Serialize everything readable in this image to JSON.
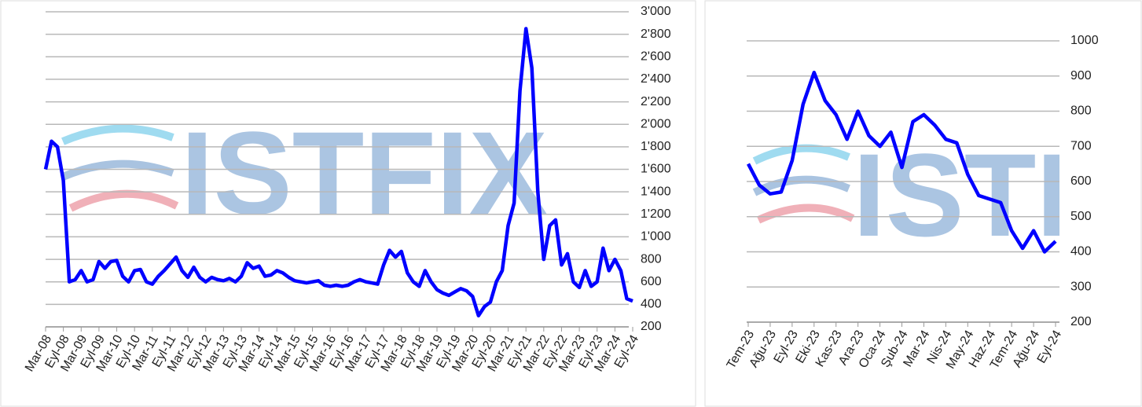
{
  "chart_data": [
    {
      "type": "line",
      "watermark": "ISTFIX",
      "categories": [
        "Mar-08",
        null,
        null,
        "Eyl-08",
        null,
        null,
        "Mar-09",
        null,
        null,
        "Eyl-09",
        null,
        null,
        "Mar-10",
        null,
        null,
        "Eyl-10",
        null,
        null,
        "Mar-11",
        null,
        null,
        "Eyl-11",
        null,
        null,
        "Mar-12",
        null,
        null,
        "Eyl-12",
        null,
        null,
        "Mar-13",
        null,
        null,
        "Eyl-13",
        null,
        null,
        "Mar-14",
        null,
        null,
        "Eyl-14",
        null,
        null,
        "Mar-15",
        null,
        null,
        "Eyl-15",
        null,
        null,
        "Mar-16",
        null,
        null,
        "Eyl-16",
        null,
        null,
        "Mar-17",
        null,
        null,
        "Eyl-17",
        null,
        null,
        "Mar-18",
        null,
        null,
        "Eyl-18",
        null,
        null,
        "Mar-19",
        null,
        null,
        "Eyl-19",
        null,
        null,
        "Mar-20",
        null,
        null,
        "Eyl-20",
        null,
        null,
        "Mar-21",
        null,
        null,
        "Eyl-21",
        null,
        null,
        "Mar-22",
        null,
        null,
        "Eyl-22",
        null,
        null,
        "Mar-23",
        null,
        null,
        "Eyl-23",
        null,
        null,
        "Mar-24",
        null,
        null,
        "Eyl-24"
      ],
      "series": [
        {
          "color": "#0000ff",
          "values": [
            1600,
            1850,
            1800,
            1500,
            600,
            620,
            700,
            600,
            620,
            780,
            720,
            780,
            790,
            650,
            600,
            700,
            710,
            600,
            580,
            650,
            700,
            760,
            820,
            700,
            640,
            730,
            640,
            600,
            640,
            620,
            610,
            630,
            600,
            650,
            770,
            720,
            740,
            650,
            660,
            700,
            680,
            640,
            610,
            600,
            590,
            600,
            610,
            570,
            560,
            570,
            560,
            570,
            600,
            620,
            600,
            590,
            580,
            750,
            880,
            820,
            870,
            680,
            600,
            560,
            700,
            600,
            530,
            500,
            480,
            510,
            540,
            520,
            470,
            300,
            380,
            420,
            600,
            700,
            1100,
            1300,
            2300,
            2850,
            2500,
            1400,
            800,
            1100,
            1150,
            750,
            850,
            600,
            550,
            700,
            560,
            600,
            900,
            700,
            800,
            700,
            450,
            430
          ]
        }
      ],
      "ylim": [
        200,
        3000
      ],
      "yticks": [
        200,
        400,
        600,
        800,
        {
          "value": 1000,
          "label": "1'000"
        },
        {
          "value": 1200,
          "label": "1'200"
        },
        {
          "value": 1400,
          "label": "1'400"
        },
        {
          "value": 1600,
          "label": "1'600"
        },
        {
          "value": 1800,
          "label": "1'800"
        },
        {
          "value": 2000,
          "label": "2'000"
        },
        {
          "value": 2200,
          "label": "2'200"
        },
        {
          "value": 2400,
          "label": "2'400"
        },
        {
          "value": 2600,
          "label": "2'600"
        },
        {
          "value": 2800,
          "label": "2'800"
        },
        {
          "value": 3000,
          "label": "3'000"
        }
      ],
      "grid": true
    },
    {
      "type": "line",
      "watermark": "ISTFIX",
      "categories": [
        "Tem-23",
        null,
        "Ağu-23",
        null,
        "Eyl-23",
        null,
        "Eki-23",
        null,
        "Kas-23",
        null,
        "Ara-23",
        null,
        "Oca-24",
        null,
        "Şub-24",
        null,
        "Mar-24",
        null,
        "Nis-24",
        null,
        "May-24",
        null,
        "Haz-24",
        null,
        "Tem-24",
        null,
        "Ağu-24",
        null,
        "Eyl-24"
      ],
      "series": [
        {
          "color": "#0000ff",
          "values": [
            650,
            590,
            565,
            570,
            660,
            820,
            910,
            830,
            790,
            720,
            800,
            730,
            700,
            740,
            640,
            770,
            790,
            760,
            720,
            710,
            620,
            560,
            550,
            540,
            460,
            410,
            460,
            400,
            430
          ]
        }
      ],
      "ylim": [
        200,
        1000
      ],
      "yticks": [
        200,
        300,
        400,
        500,
        600,
        700,
        800,
        900,
        1000
      ],
      "grid": true
    }
  ]
}
